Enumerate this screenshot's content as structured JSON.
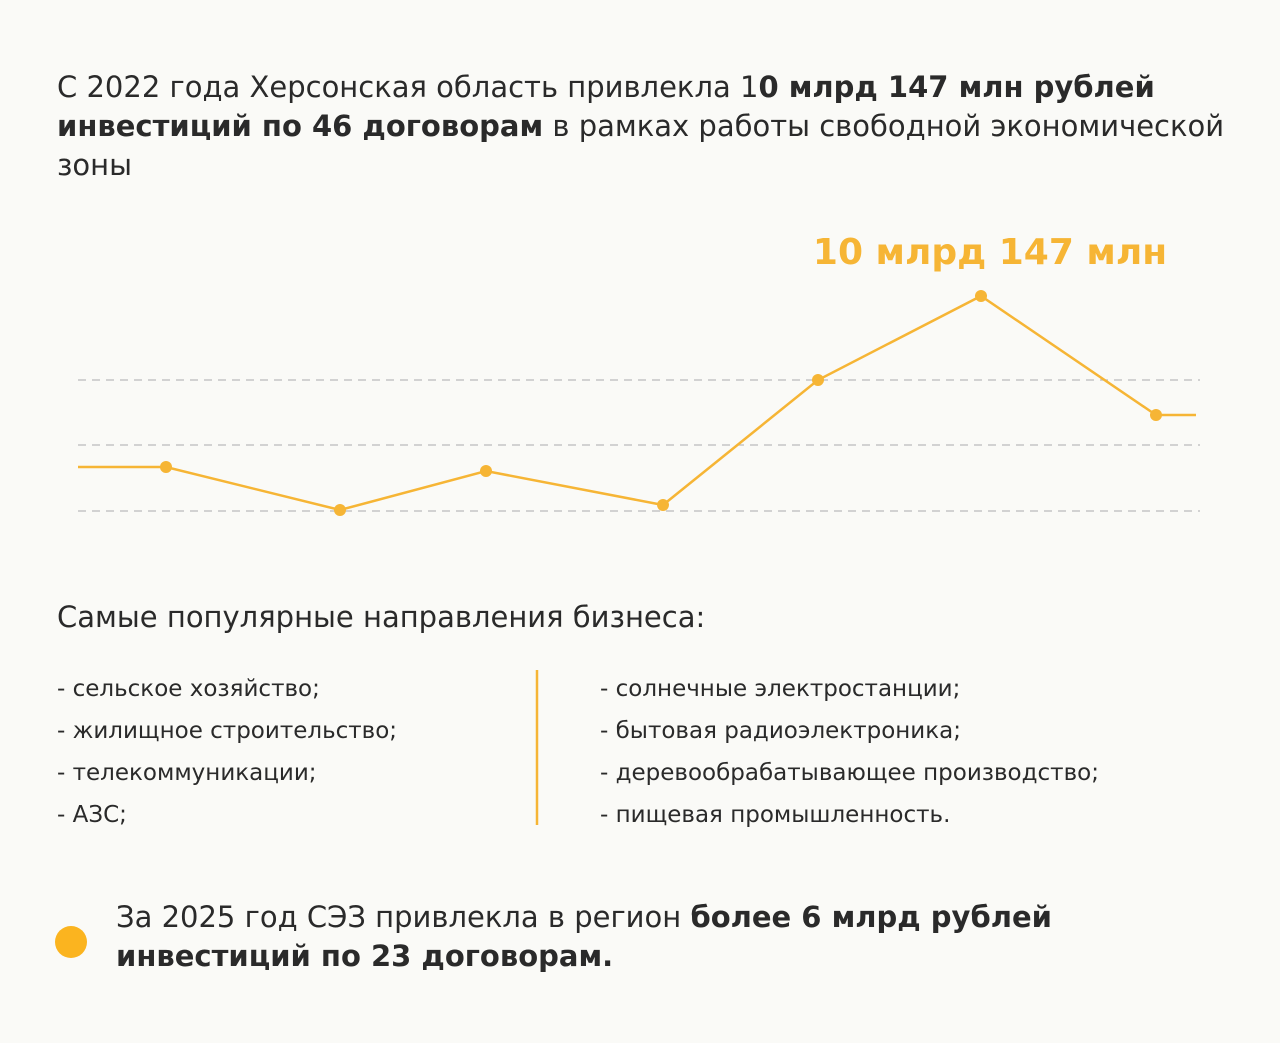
{
  "heading": {
    "parts": [
      {
        "text": "С 2022 года Херсонская область привлекла 1",
        "bold": false
      },
      {
        "text": "0 млрд 147 млн рублей инвестиций по 46 договорам",
        "bold": true
      },
      {
        "text": " в рамках работы свободной экономической зоны",
        "bold": false
      }
    ]
  },
  "chart_label": "10 млрд 147 млн",
  "directions": {
    "title": "Самые популярные направления бизнеса:",
    "left": [
      "- сельское хозяйство;",
      "- жилищное строительство;",
      "- телекоммуникации;",
      "- АЗС;"
    ],
    "right": [
      "- солнечные электростанции;",
      "- бытовая радиоэлектроника;",
      "- деревообрабатывающее производство;",
      "- пищевая промышленность."
    ]
  },
  "footer": {
    "parts": [
      {
        "text": "За 2025 год СЭЗ привлекла в регион ",
        "bold": false
      },
      {
        "text": "более 6 млрд рублей инвестиций по 23 договорам.",
        "bold": true
      }
    ]
  }
}
